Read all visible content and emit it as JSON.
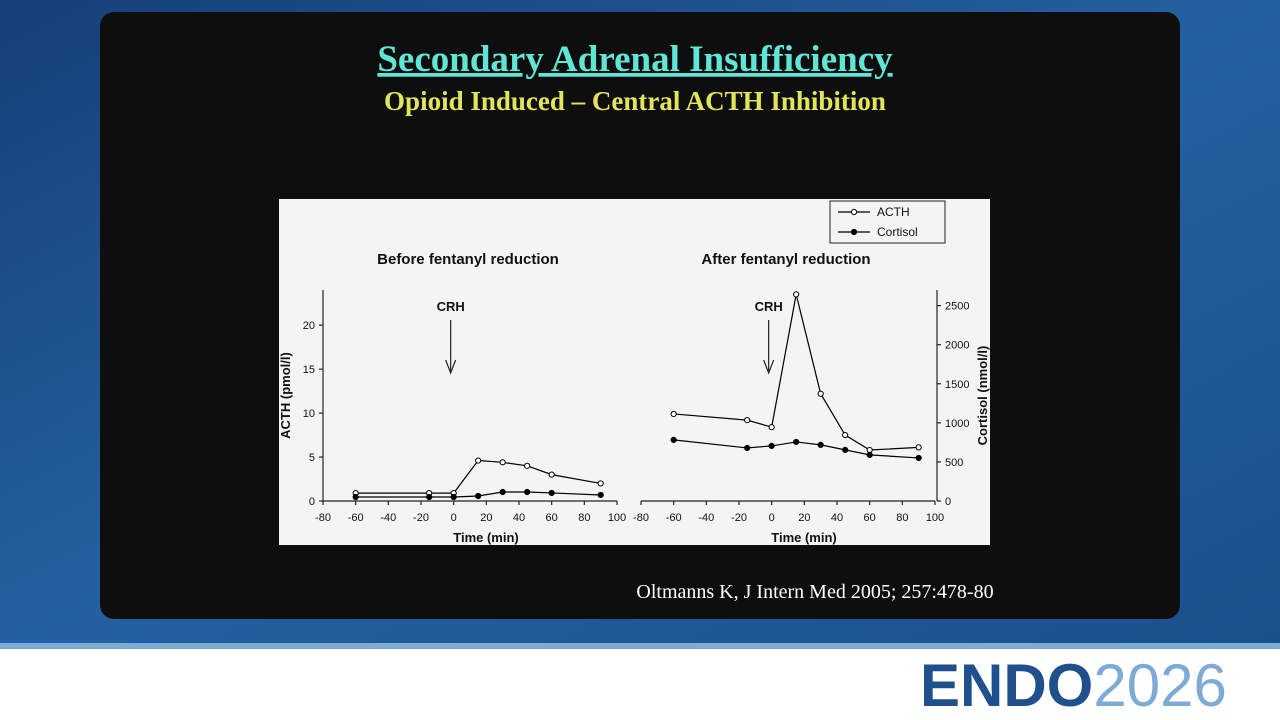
{
  "slide": {
    "title": "Secondary Adrenal Insufficiency",
    "subtitle": "Opioid Induced – Central ACTH Inhibition",
    "citation": "Oltmanns K, J Intern Med 2005; 257:478-80",
    "logo_word": "ENDO",
    "logo_year": "2026"
  },
  "chart_data": [
    {
      "type": "line",
      "title": "Before fentanyl reduction",
      "x_label": "Time (min)",
      "y_label": "ACTH (pmol/l)",
      "x": [
        -60,
        -15,
        0,
        15,
        30,
        45,
        60,
        90
      ],
      "xlim": [
        -80,
        100
      ],
      "xticks": [
        -80,
        -60,
        -40,
        -20,
        0,
        20,
        40,
        60,
        80,
        100
      ],
      "ylim": [
        0,
        24
      ],
      "yticks": [
        0,
        5,
        10,
        15,
        20
      ],
      "y2lim": [
        0,
        2700
      ],
      "annotation": {
        "text": "CRH",
        "x": 0
      },
      "series": [
        {
          "name": "ACTH",
          "color": "#000000",
          "marker": "open",
          "values": [
            0.9,
            0.9,
            0.9,
            4.6,
            4.4,
            4.0,
            3.0,
            2.0
          ]
        },
        {
          "name": "Cortisol",
          "color": "#000000",
          "marker": "filled",
          "axis": "y2",
          "values": [
            51,
            51,
            51,
            64,
            115,
            115,
            103,
            77
          ]
        }
      ]
    },
    {
      "type": "line",
      "title": "After fentanyl reduction",
      "x_label": "Time (min)",
      "y2_label": "Cortisol (nmol/l)",
      "x": [
        -60,
        -15,
        0,
        15,
        30,
        45,
        60,
        90
      ],
      "xlim": [
        -80,
        100
      ],
      "xticks": [
        -80,
        -60,
        -40,
        -20,
        0,
        20,
        40,
        60,
        80,
        100
      ],
      "ylim": [
        0,
        24
      ],
      "y2lim": [
        0,
        2700
      ],
      "y2ticks": [
        0,
        500,
        1000,
        1500,
        2000,
        2500
      ],
      "annotation": {
        "text": "CRH",
        "x": 0
      },
      "legend": "upper right",
      "series": [
        {
          "name": "ACTH",
          "color": "#000000",
          "marker": "open",
          "values": [
            9.9,
            9.2,
            8.4,
            23.5,
            12.2,
            7.5,
            5.8,
            6.1
          ]
        },
        {
          "name": "Cortisol",
          "color": "#000000",
          "marker": "filled",
          "axis": "y2",
          "values": [
            782,
            679,
            705,
            756,
            718,
            654,
            590,
            551
          ]
        }
      ]
    }
  ]
}
